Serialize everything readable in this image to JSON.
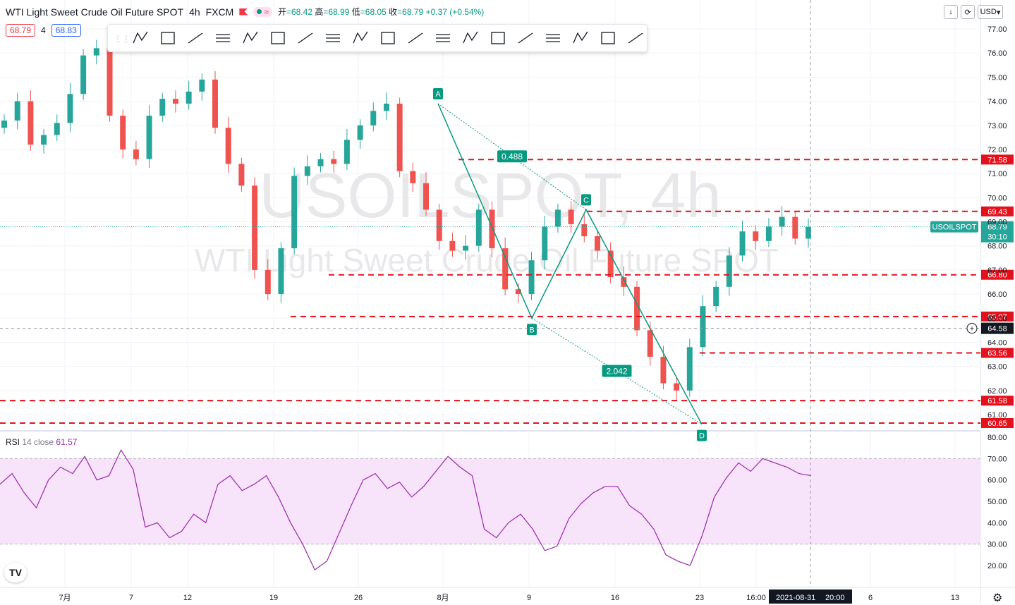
{
  "header": {
    "title": "WTI Light Sweet Crude Oil Future SPOT",
    "interval": "4h",
    "exchange": "FXCM",
    "ohlc": {
      "o_label": "开",
      "o": "=68.42",
      "h_label": "高",
      "h": "=68.99",
      "l_label": "低",
      "l": "=68.05",
      "c_label": "收",
      "c": "=68.79",
      "change": "+0.37 (+0.54%)"
    },
    "bid": "68.79",
    "spread": "4",
    "ask": "68.83",
    "currency": "USD",
    "wave_icon": "≈"
  },
  "watermark": {
    "line1": "USOILSPOT, 4h",
    "line2": "WTI Light Sweet Crude Oil Future SPOT"
  },
  "rsi": {
    "label": "RSI",
    "params": "14 close",
    "value": "61.57"
  },
  "toolbar_icons": [
    "xabcd-pattern-icon",
    "cypher-pattern-icon",
    "abcd-pattern-icon",
    "triangle-pattern-icon",
    "three-drives-icon",
    "head-shoulders-icon",
    "elliott-wave-icon",
    "rectangle-icon",
    "ellipse-icon",
    "fib-retracement-icon",
    "fib-extension-icon",
    "trend-line-icon",
    "ray-icon",
    "horizontal-line-icon",
    "arrow-icon",
    "parallel-channel-icon",
    "vertical-line-icon",
    "angle-icon",
    "text-icon",
    "pitchfork-icon",
    "comment-icon",
    "settings-icon"
  ],
  "colors": {
    "up": "#26a69a",
    "down": "#ef5350",
    "pattern": "#089981",
    "level": "#e3111c",
    "rsi": "#9c27b0",
    "rsi_band": "#f7e3fa"
  },
  "chart_data": {
    "type": "candlestick",
    "y_axis": {
      "min": 60,
      "max": 77,
      "ticks": [
        61,
        62,
        63,
        64,
        65,
        66,
        67,
        68,
        69,
        70,
        71,
        72,
        73,
        74,
        75,
        76,
        77
      ]
    },
    "x_ticks": [
      "7月",
      "7",
      "12",
      "19",
      "26",
      "8月",
      "9",
      "16",
      "23",
      "16:00",
      "6",
      "13"
    ],
    "crosshair_date": "2021-08-31",
    "crosshair_time": "20:00",
    "crosshair_price": "64.58",
    "symbol_label": "USOILSPOT",
    "last_price": "68.79",
    "countdown": "30:10",
    "levels": [
      "71.58",
      "69.43",
      "66.80",
      "65.07",
      "63.56",
      "61.58",
      "60.65"
    ],
    "abcd": {
      "points": [
        {
          "label": "A",
          "price": 73.9
        },
        {
          "label": "B",
          "price": 65.0
        },
        {
          "label": "C",
          "price": 69.5
        },
        {
          "label": "D",
          "price": 60.6
        }
      ],
      "ratios": [
        "0.488",
        "2.042"
      ]
    },
    "rsi_axis": {
      "ticks": [
        "80.00",
        "70.00",
        "60.00",
        "50.00",
        "40.00",
        "30.00",
        "20.00"
      ],
      "band": [
        30,
        70
      ]
    },
    "candles_summary": [
      73.2,
      74.0,
      72.2,
      72.6,
      73.1,
      74.3,
      75.9,
      76.2,
      73.4,
      72.0,
      71.6,
      73.4,
      74.1,
      73.9,
      74.4,
      74.9,
      72.9,
      71.4,
      70.5,
      67.0,
      66.0,
      67.9,
      70.9,
      71.3,
      71.6,
      71.4,
      72.4,
      73.0,
      73.6,
      73.9,
      71.1,
      70.6,
      69.5,
      68.2,
      67.8,
      68.0,
      69.5,
      67.9,
      66.2,
      66.0,
      67.4,
      68.8,
      69.5,
      68.9,
      68.4,
      67.8,
      66.7,
      66.3,
      64.5,
      63.4,
      62.3,
      62.0,
      63.8,
      65.5,
      66.3,
      67.6,
      68.6,
      68.2,
      68.8,
      69.2,
      68.3,
      68.79
    ],
    "rsi_values": [
      58,
      63,
      54,
      47,
      60,
      66,
      63,
      71,
      60,
      62,
      74,
      65,
      38,
      40,
      33,
      36,
      44,
      40,
      58,
      62,
      55,
      58,
      62,
      52,
      40,
      30,
      18,
      22,
      35,
      48,
      60,
      63,
      56,
      59,
      52,
      57,
      64,
      71,
      66,
      62,
      37,
      33,
      40,
      44,
      37,
      27,
      29,
      42,
      49,
      54,
      57,
      57,
      48,
      44,
      37,
      25,
      22,
      20,
      34,
      52,
      61,
      68,
      64,
      70,
      68,
      66,
      63,
      62
    ]
  }
}
